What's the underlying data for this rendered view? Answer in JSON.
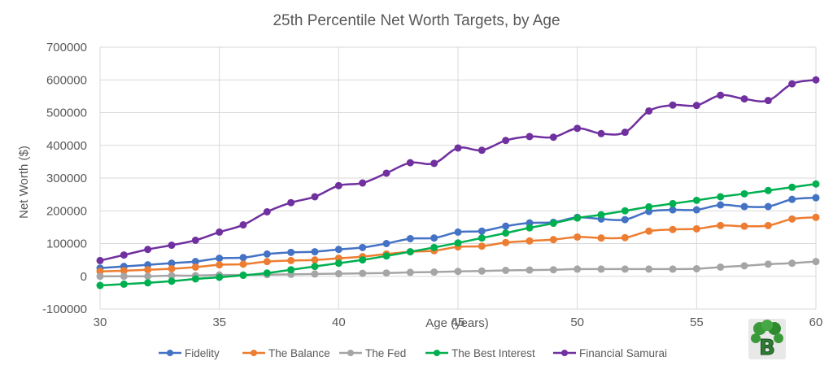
{
  "chart_data": {
    "type": "line",
    "title": "25th Percentile Net Worth Targets, by Age",
    "xlabel": "Age (years)",
    "ylabel": "Net Worth ($)",
    "xlim": [
      30,
      60
    ],
    "ylim": [
      -100000,
      700000
    ],
    "x_ticks": [
      30,
      35,
      40,
      45,
      50,
      55,
      60
    ],
    "y_ticks": [
      -100000,
      0,
      100000,
      200000,
      300000,
      400000,
      500000,
      600000,
      700000
    ],
    "grid": true,
    "legend_position": "bottom",
    "x": [
      30,
      31,
      32,
      33,
      34,
      35,
      36,
      37,
      38,
      39,
      40,
      41,
      42,
      43,
      44,
      45,
      46,
      47,
      48,
      49,
      50,
      51,
      52,
      53,
      54,
      55,
      56,
      57,
      58,
      59,
      60
    ],
    "series": [
      {
        "name": "Fidelity",
        "color": "#4472c4",
        "values": [
          25000,
          30000,
          35000,
          40000,
          45000,
          55000,
          57000,
          68000,
          73000,
          75000,
          82000,
          88000,
          100000,
          115000,
          117000,
          135000,
          138000,
          153000,
          163000,
          165000,
          180000,
          175000,
          173000,
          198000,
          203000,
          203000,
          218000,
          213000,
          213000,
          235000,
          240000
        ]
      },
      {
        "name": "The Balance",
        "color": "#ed7d31",
        "values": [
          15000,
          17000,
          20000,
          23000,
          28000,
          35000,
          37000,
          45000,
          48000,
          50000,
          55000,
          60000,
          68000,
          75000,
          78000,
          90000,
          92000,
          103000,
          108000,
          112000,
          120000,
          117000,
          118000,
          138000,
          143000,
          145000,
          155000,
          153000,
          155000,
          175000,
          180000
        ]
      },
      {
        "name": "The Fed",
        "color": "#a5a5a5",
        "values": [
          0,
          0,
          0,
          2000,
          2000,
          4000,
          4000,
          5000,
          6000,
          7000,
          8000,
          9000,
          10000,
          12000,
          13000,
          15000,
          16000,
          18000,
          19000,
          20000,
          22000,
          22000,
          22000,
          22000,
          22000,
          23000,
          28000,
          32000,
          37000,
          40000,
          45000
        ]
      },
      {
        "name": "The Best Interest",
        "color": "#00b050",
        "values": [
          -28000,
          -24000,
          -20000,
          -15000,
          -8000,
          -3000,
          3000,
          10000,
          20000,
          30000,
          40000,
          50000,
          62000,
          75000,
          88000,
          102000,
          117000,
          132000,
          148000,
          162000,
          178000,
          188000,
          200000,
          212000,
          222000,
          232000,
          243000,
          252000,
          262000,
          272000,
          282000
        ]
      },
      {
        "name": "Financial Samurai",
        "color": "#7030a0",
        "values": [
          48000,
          65000,
          82000,
          95000,
          110000,
          135000,
          157000,
          197000,
          225000,
          243000,
          277000,
          285000,
          315000,
          347000,
          345000,
          392000,
          385000,
          415000,
          427000,
          425000,
          452000,
          436000,
          440000,
          505000,
          523000,
          522000,
          553000,
          542000,
          537000,
          588000,
          600000
        ]
      }
    ]
  },
  "logo": {
    "letter": "B"
  }
}
